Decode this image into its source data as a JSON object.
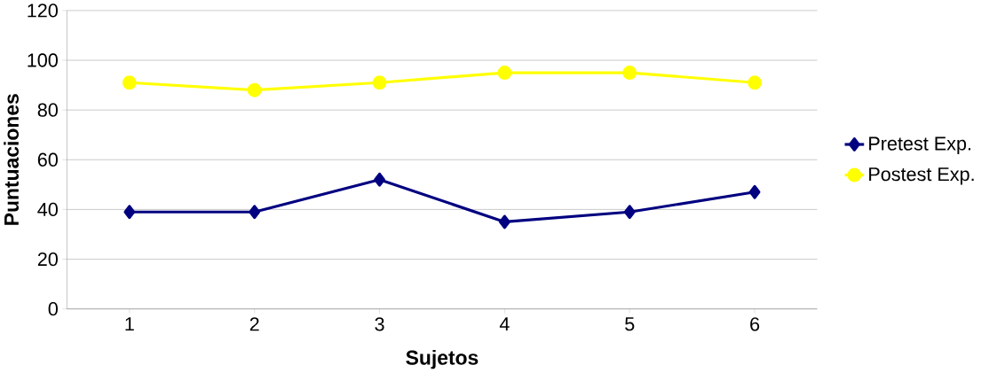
{
  "chart_data": {
    "type": "line",
    "xlabel": "Sujetos",
    "ylabel": "Puntuaciones",
    "categories": [
      "1",
      "2",
      "3",
      "4",
      "5",
      "6"
    ],
    "series": [
      {
        "name": "Pretest Exp.",
        "color": "#000080",
        "marker": "diamond",
        "values": [
          39,
          39,
          52,
          35,
          39,
          47
        ]
      },
      {
        "name": "Postest Exp.",
        "color": "#ffff00",
        "marker": "circle",
        "values": [
          91,
          88,
          91,
          95,
          95,
          91
        ]
      }
    ],
    "ylim": [
      0,
      120
    ],
    "yticks": [
      0,
      20,
      40,
      60,
      80,
      100,
      120
    ],
    "grid": "y",
    "legend": "right"
  }
}
